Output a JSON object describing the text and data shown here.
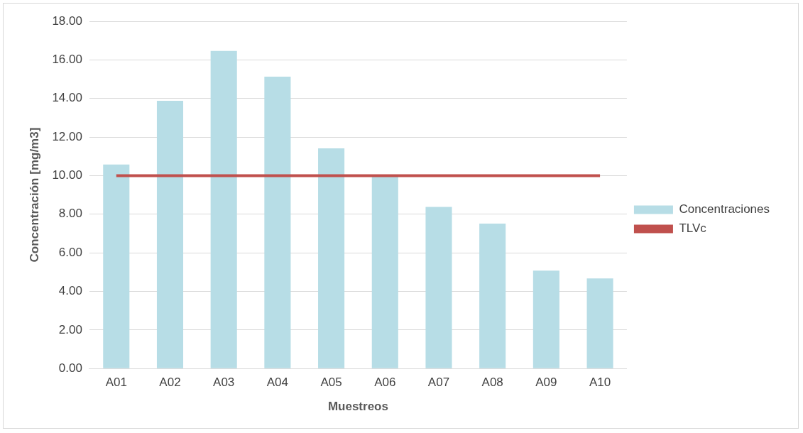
{
  "chart_data": {
    "type": "bar",
    "xlabel": "Muestreos",
    "ylabel": "Concentración [mg/m3]",
    "categories": [
      "A01",
      "A02",
      "A03",
      "A04",
      "A05",
      "A06",
      "A07",
      "A08",
      "A09",
      "A10"
    ],
    "series": [
      {
        "name": "Concentraciones",
        "color": "#b7dde6",
        "values": [
          10.58,
          13.88,
          16.46,
          15.13,
          11.41,
          9.95,
          8.38,
          7.51,
          5.08,
          4.67
        ]
      },
      {
        "name": "TLVc",
        "type": "line",
        "color": "#c0504d",
        "values": [
          10,
          10,
          10,
          10,
          10,
          10,
          10,
          10,
          10,
          10
        ]
      }
    ],
    "ylim": [
      0,
      18
    ],
    "yticks": [
      {
        "value": 0,
        "label": "0.00"
      },
      {
        "value": 2,
        "label": "2.00"
      },
      {
        "value": 4,
        "label": "4.00"
      },
      {
        "value": 6,
        "label": "6.00"
      },
      {
        "value": 8,
        "label": "8.00"
      },
      {
        "value": 10,
        "label": "10.00"
      },
      {
        "value": 12,
        "label": "12.00"
      },
      {
        "value": 14,
        "label": "14.00"
      },
      {
        "value": 16,
        "label": "16.00"
      },
      {
        "value": 18,
        "label": "18.00"
      }
    ],
    "grid": "y",
    "legend": "right",
    "marker": "none"
  }
}
